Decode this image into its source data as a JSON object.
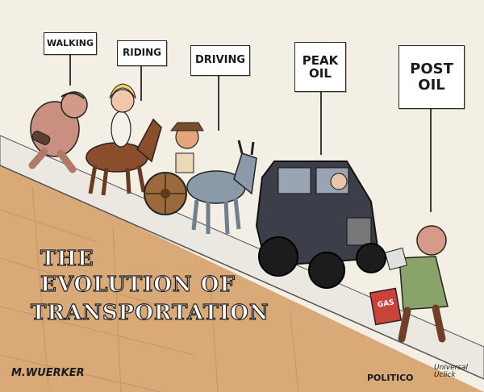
{
  "signs": [
    {
      "id": "walking",
      "text": "WALKING"
    },
    {
      "id": "riding",
      "text": "RIDING"
    },
    {
      "id": "driving",
      "text": "DRIVING"
    },
    {
      "id": "peak-oil",
      "text": "PEAK\nOIL"
    },
    {
      "id": "post-oil",
      "text": "POST\nOIL"
    }
  ],
  "title": {
    "line1": "THE",
    "line2": "EVOLUTION OF",
    "line3": "TRANSPORTATION"
  },
  "gas_can_label": "GAS",
  "credits": {
    "artist": "M.WUERKER",
    "publisher": "POLITICO",
    "syndicate": "Universal\nUclick"
  },
  "colors": {
    "ground": "#d9a977",
    "sidewalk": "#e9e6df",
    "sky": "#f3efe4",
    "car": "#3c3f49",
    "horse": "#8a4e2c",
    "donkey": "#8a9aa8"
  }
}
